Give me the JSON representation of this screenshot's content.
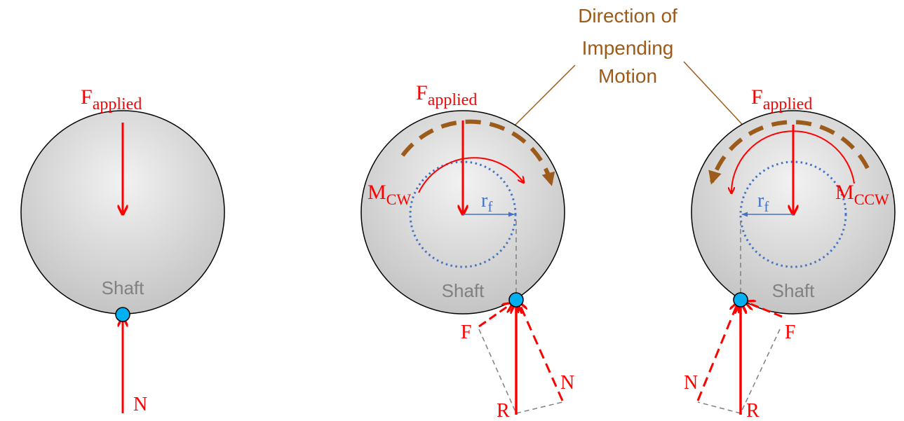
{
  "annotation": {
    "line1": "Direction of",
    "line2": "Impending",
    "line3": "Motion"
  },
  "panels": [
    {
      "applied_force_main": "F",
      "applied_force_sub": "applied",
      "shaft_label": "Shaft",
      "normal_label": "N"
    },
    {
      "applied_force_main": "F",
      "applied_force_sub": "applied",
      "shaft_label": "Shaft",
      "moment_main": "M",
      "moment_sub": "CW",
      "friction_radius_main": "r",
      "friction_radius_sub": "f",
      "friction_label": "F",
      "normal_label": "N",
      "resultant_label": "R"
    },
    {
      "applied_force_main": "F",
      "applied_force_sub": "applied",
      "shaft_label": "Shaft",
      "moment_main": "M",
      "moment_sub": "CCW",
      "friction_radius_main": "r",
      "friction_radius_sub": "f",
      "friction_label": "F",
      "normal_label": "N",
      "resultant_label": "R"
    }
  ],
  "colors": {
    "force": "#ff0000",
    "motion": "#9c5b1a",
    "radius": "#4472c4",
    "shaft_label": "#808080",
    "contact": "#00b0f0"
  }
}
